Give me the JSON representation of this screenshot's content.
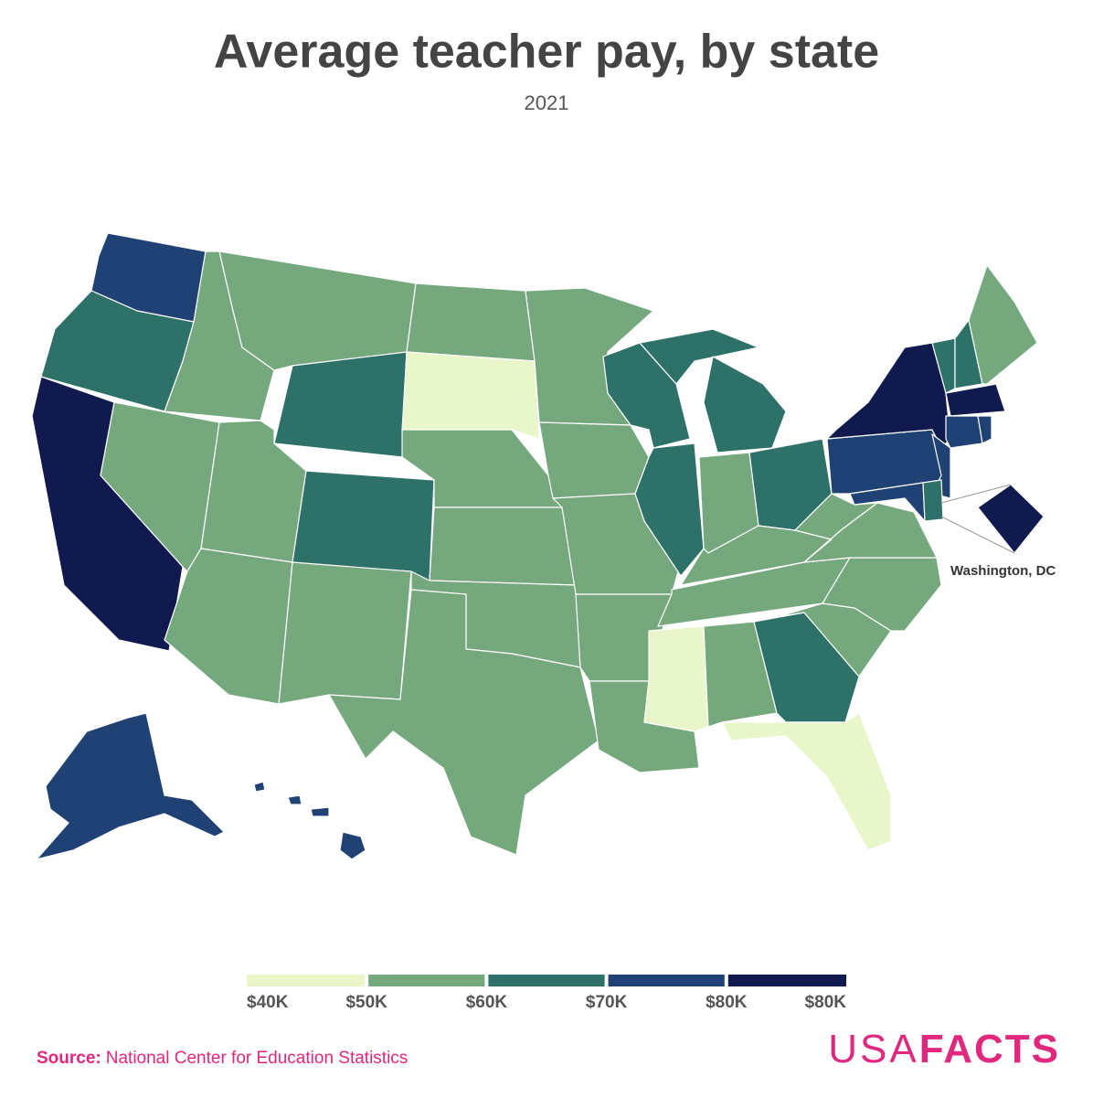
{
  "title": "Average teacher pay, by state",
  "subtitle": "2021",
  "legend": {
    "colors": [
      "#e8f6c9",
      "#76a87e",
      "#2e7168",
      "#1f4174",
      "#111a4f"
    ],
    "labels": [
      "$40K",
      "$50K",
      "$60K",
      "$70K",
      "$80K",
      "$80K"
    ]
  },
  "callout": "Washington, DC",
  "source": {
    "label": "Source:",
    "text": "National Center for Education Statistics"
  },
  "logo": {
    "usa": "USA",
    "facts": "FACTS"
  }
}
